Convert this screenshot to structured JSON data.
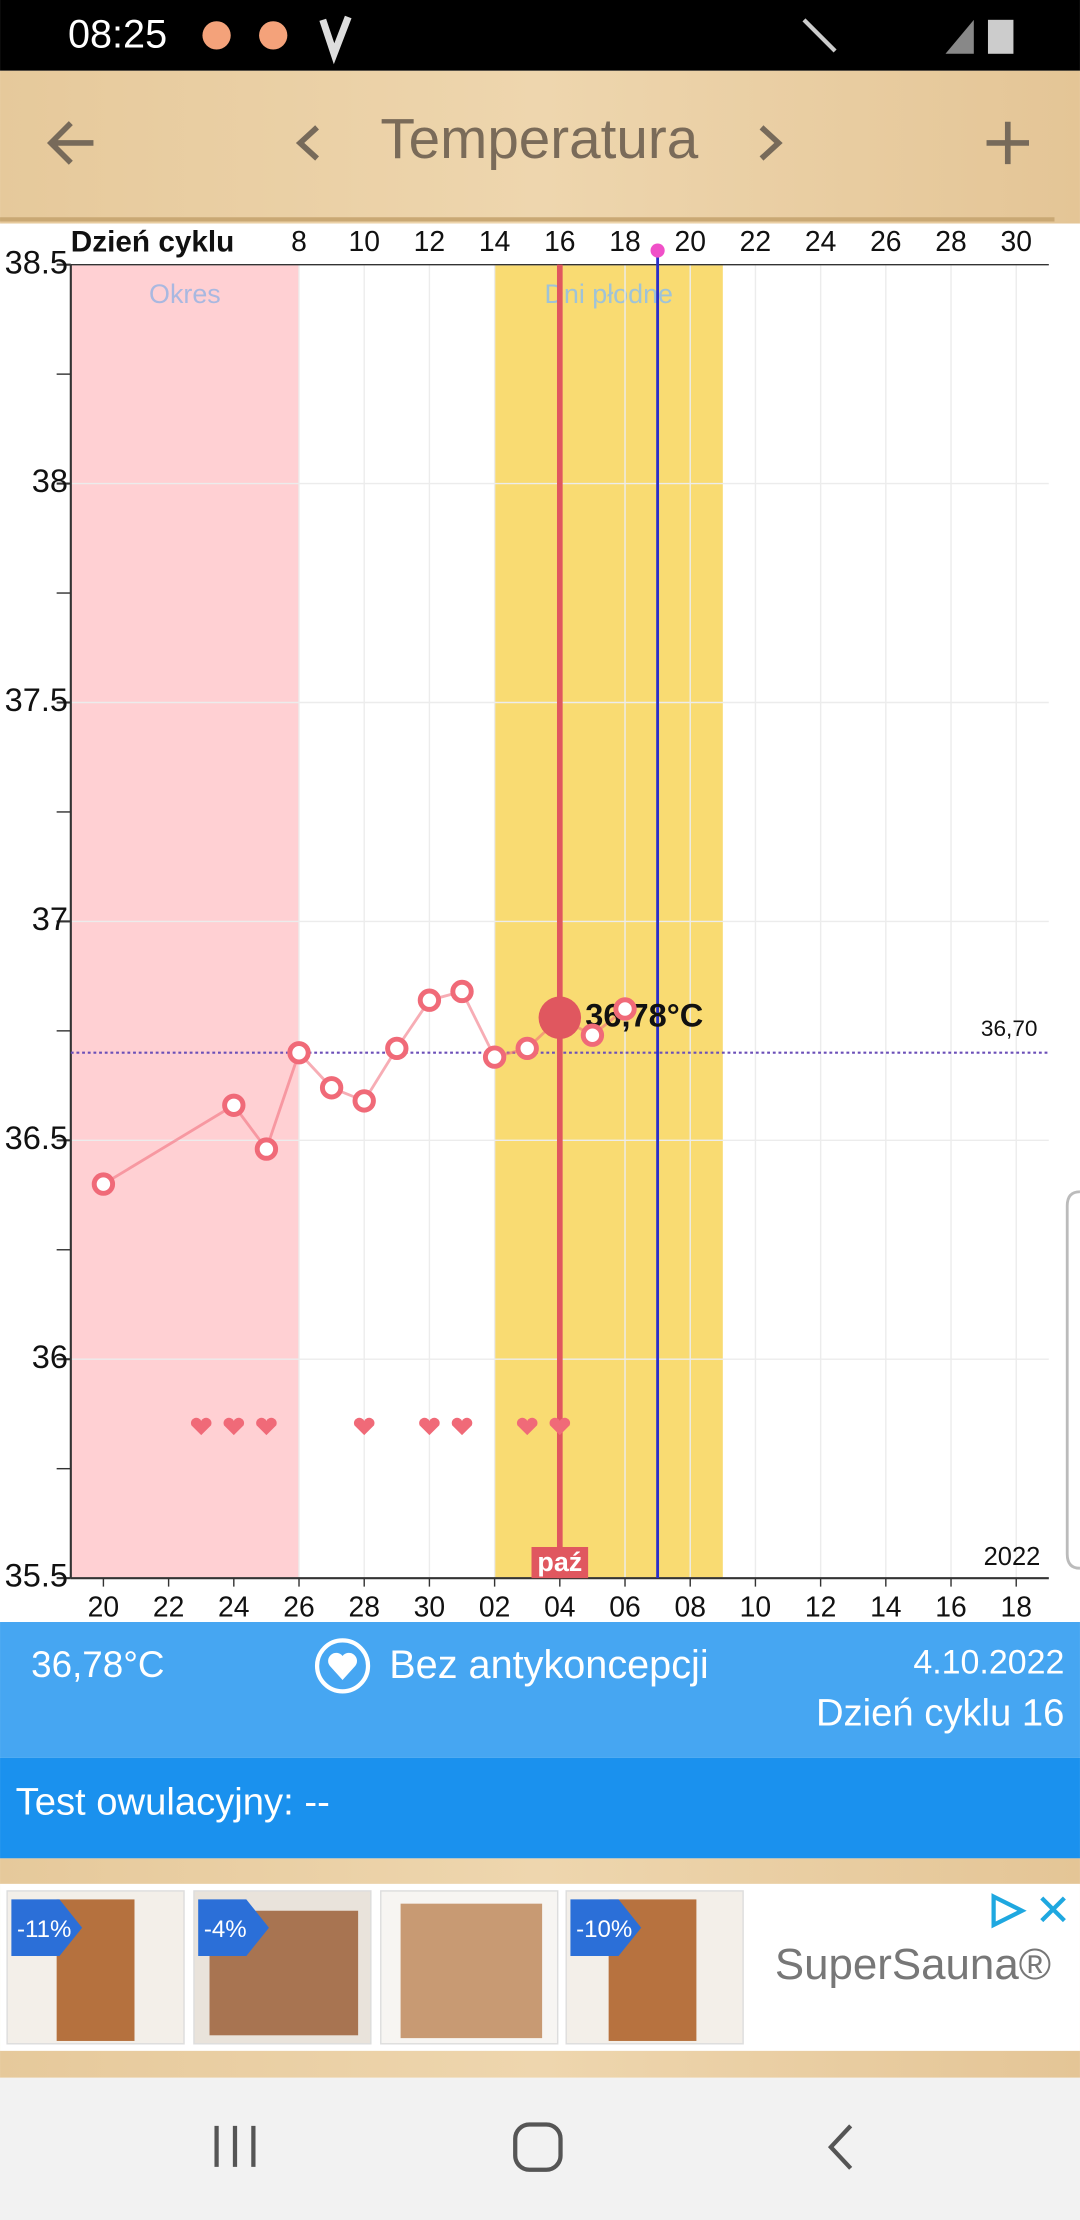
{
  "status_bar": {
    "time": "08:25"
  },
  "header": {
    "title": "Temperatura"
  },
  "chart_data": {
    "type": "line",
    "x_label": "Dzień cyklu",
    "x": [
      2,
      6,
      7,
      8,
      9,
      10,
      11,
      12,
      13,
      14,
      15,
      16,
      17,
      18
    ],
    "values": [
      36.4,
      36.58,
      36.48,
      36.7,
      36.62,
      36.59,
      36.71,
      36.82,
      36.84,
      36.69,
      36.71,
      36.78,
      36.74,
      36.8
    ],
    "value_labels": [
      null,
      null,
      null,
      null,
      null,
      null,
      null,
      null,
      null,
      null,
      null,
      "36,78°C",
      null,
      null
    ],
    "color": "#f06a78",
    "xlim": [
      1,
      31
    ],
    "ylim": [
      35.5,
      38.5
    ],
    "yticks": [
      35.5,
      36,
      36.5,
      37,
      37.5,
      38,
      38.5
    ],
    "y_minor_ticks": [
      35.75,
      36.25,
      36.75,
      37.25,
      37.75,
      38.25
    ],
    "cycle_day_ticks": [
      8,
      10,
      12,
      14,
      16,
      18,
      20,
      22,
      24,
      26,
      28,
      30
    ],
    "xticks": [
      {
        "value": 2,
        "label": "20"
      },
      {
        "value": 4,
        "label": "22"
      },
      {
        "value": 6,
        "label": "24"
      },
      {
        "value": 8,
        "label": "26"
      },
      {
        "value": 10,
        "label": "28"
      },
      {
        "value": 12,
        "label": "30"
      },
      {
        "value": 14,
        "label": "02"
      },
      {
        "value": 16,
        "label": "04"
      },
      {
        "value": 18,
        "label": "06"
      },
      {
        "value": 20,
        "label": "08"
      },
      {
        "value": 22,
        "label": "10"
      },
      {
        "value": 24,
        "label": "12"
      },
      {
        "value": 26,
        "label": "14"
      },
      {
        "value": 28,
        "label": "16"
      },
      {
        "value": 30,
        "label": "18"
      }
    ],
    "grid": true,
    "month_label": {
      "value": 16,
      "label": "paź"
    },
    "year": "2022",
    "bands": [
      {
        "name": "Okres",
        "range": [
          1,
          8
        ],
        "color": "#ffd0d3",
        "text_color": "#a9b8e0"
      },
      {
        "name": "Dni płodne",
        "range": [
          14,
          21
        ],
        "color": "#f9db72",
        "text_color": "#9fc3d8"
      }
    ],
    "selected_day": 16,
    "selected_color": "#e0575f",
    "ovulation_day": 19,
    "ovulation_color": "#2a2fc9",
    "cover_line": {
      "value": 36.7,
      "label": "36,70",
      "color": "#6b4fb8"
    },
    "intercourse_days": [
      5,
      6,
      7,
      10,
      12,
      13,
      15,
      16
    ]
  },
  "summary": {
    "temperature": "36,78°C",
    "contraception": "Bez antykoncepcji",
    "date": "4.10.2022",
    "cycle_day": "Dzień cyklu 16"
  },
  "ovulation_test": "Test owulacyjny: --",
  "ad": {
    "discounts": [
      "-11%",
      "-4%",
      "-10%"
    ],
    "brand": "SuperSauna®"
  }
}
